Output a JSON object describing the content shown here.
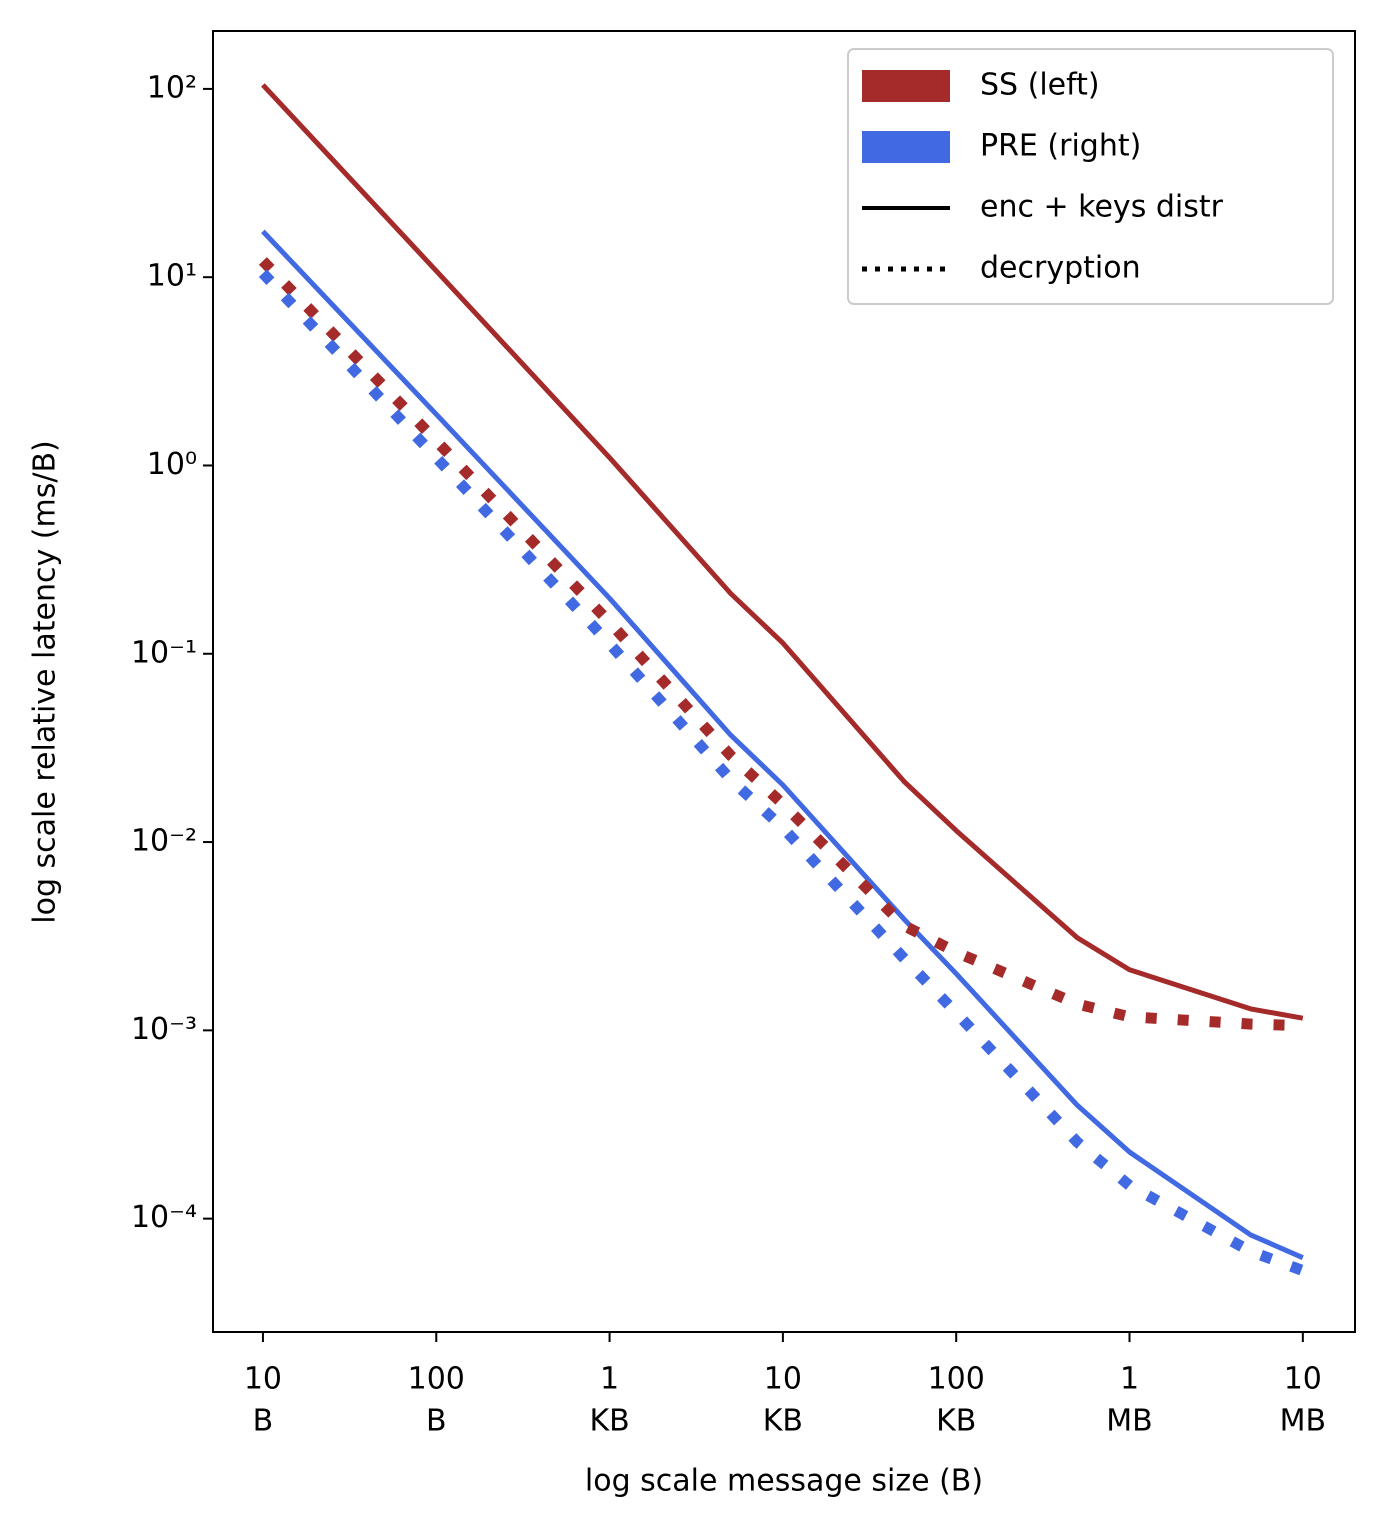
{
  "chart_data": {
    "type": "line",
    "xlabel": "log scale message size (B)",
    "ylabel": "log scale relative latency (ms/B)",
    "log_x": true,
    "log_y": true,
    "xlim": [
      5.15,
      20000000
    ],
    "ylim": [
      2.5e-05,
      203
    ],
    "x": [
      10,
      100,
      1000,
      5000,
      10000,
      50000,
      100000,
      500000,
      1000000,
      5000000,
      10000000
    ],
    "xticks": [
      {
        "value": 10,
        "label": [
          "10",
          "B"
        ]
      },
      {
        "value": 100,
        "label": [
          "100",
          "B"
        ]
      },
      {
        "value": 1000,
        "label": [
          "1",
          "KB"
        ]
      },
      {
        "value": 10000,
        "label": [
          "10",
          "KB"
        ]
      },
      {
        "value": 100000,
        "label": [
          "100",
          "KB"
        ]
      },
      {
        "value": 1000000,
        "label": [
          "1",
          "MB"
        ]
      },
      {
        "value": 10000000,
        "label": [
          "10",
          "MB"
        ]
      }
    ],
    "yticks": [
      {
        "value": 0.0001,
        "label": "10⁻⁴"
      },
      {
        "value": 0.001,
        "label": "10⁻³"
      },
      {
        "value": 0.01,
        "label": "10⁻²"
      },
      {
        "value": 0.1,
        "label": "10⁻¹"
      },
      {
        "value": 1,
        "label": "10⁰"
      },
      {
        "value": 10,
        "label": "10¹"
      },
      {
        "value": 100,
        "label": "10²"
      }
    ],
    "series": [
      {
        "color": "#a52a2a",
        "style": "solid",
        "values": [
          105,
          10.8,
          1.1,
          0.209,
          0.114,
          0.021,
          0.0115,
          0.0031,
          0.0021,
          0.0013,
          0.00116
        ]
      },
      {
        "color": "#4169e1",
        "style": "solid",
        "values": [
          17.5,
          1.87,
          0.197,
          0.037,
          0.0201,
          0.0039,
          0.002,
          0.0004,
          0.000226,
          8.2e-05,
          6.2e-05
        ]
      },
      {
        "color": "#a52a2a",
        "style": "dotted",
        "values": [
          12.2,
          1.35,
          0.147,
          0.0288,
          0.0159,
          0.0036,
          0.0026,
          0.00138,
          0.00118,
          0.00108,
          0.00106
        ]
      },
      {
        "color": "#4169e1",
        "style": "dotted",
        "values": [
          10.5,
          1.1,
          0.113,
          0.0215,
          0.0119,
          0.00241,
          0.00124,
          0.000255,
          0.00015,
          6.7e-05,
          5.3e-05
        ]
      }
    ],
    "legend_position": "upper right",
    "legend": [
      {
        "label": "SS (left)",
        "kind": "patch",
        "color": "#a52a2a"
      },
      {
        "label": "PRE (right)",
        "kind": "patch",
        "color": "#4169e1"
      },
      {
        "label": "enc + keys distr",
        "kind": "solid",
        "color": "#000000"
      },
      {
        "label": "decryption",
        "kind": "dotted",
        "color": "#000000"
      }
    ]
  }
}
